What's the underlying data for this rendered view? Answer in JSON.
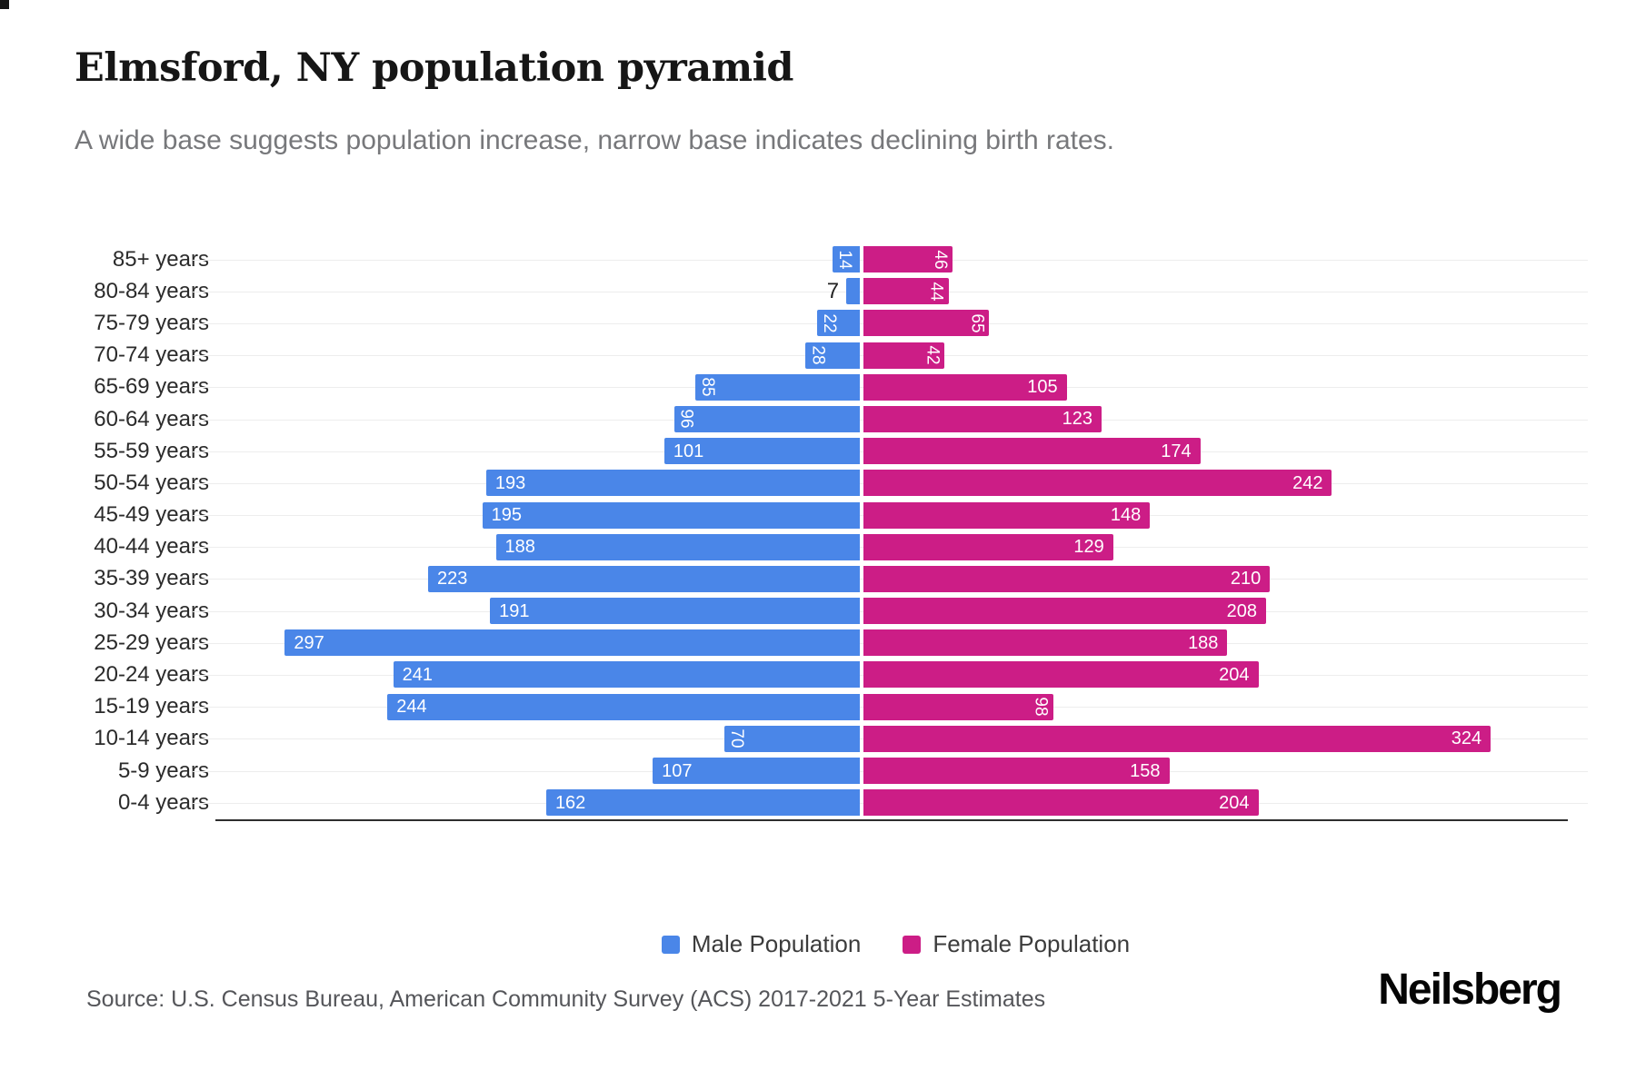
{
  "page": {
    "title": "Elmsford, NY population pyramid",
    "subtitle": "A wide base suggests population increase, narrow base indicates declining birth rates.",
    "source": "Source: U.S. Census Bureau, American Community Survey (ACS) 2017-2021 5-Year Estimates",
    "logo": "Neilsberg"
  },
  "chart_data": {
    "type": "bar",
    "variant": "population-pyramid",
    "orientation": "horizontal",
    "title": "Elmsford, NY population pyramid",
    "xlabel": "",
    "ylabel": "",
    "axis_max_each_side": 350,
    "grid": true,
    "legend_position": "bottom",
    "value_labels": "inside-white",
    "categories": [
      "85+ years",
      "80-84 years",
      "75-79 years",
      "70-74 years",
      "65-69 years",
      "60-64 years",
      "55-59 years",
      "50-54 years",
      "45-49 years",
      "40-44 years",
      "35-39 years",
      "30-34 years",
      "25-29 years",
      "20-24 years",
      "15-19 years",
      "10-14 years",
      "5-9 years",
      "0-4 years"
    ],
    "series": [
      {
        "name": "Male Population",
        "color": "#4a86e8",
        "side": "left",
        "values": [
          14,
          7,
          22,
          28,
          85,
          96,
          101,
          193,
          195,
          188,
          223,
          191,
          297,
          241,
          244,
          70,
          107,
          162
        ]
      },
      {
        "name": "Female Population",
        "color": "#cc1d86",
        "side": "right",
        "values": [
          46,
          44,
          65,
          42,
          105,
          123,
          174,
          242,
          148,
          129,
          210,
          208,
          188,
          204,
          98,
          324,
          158,
          204
        ]
      }
    ]
  }
}
